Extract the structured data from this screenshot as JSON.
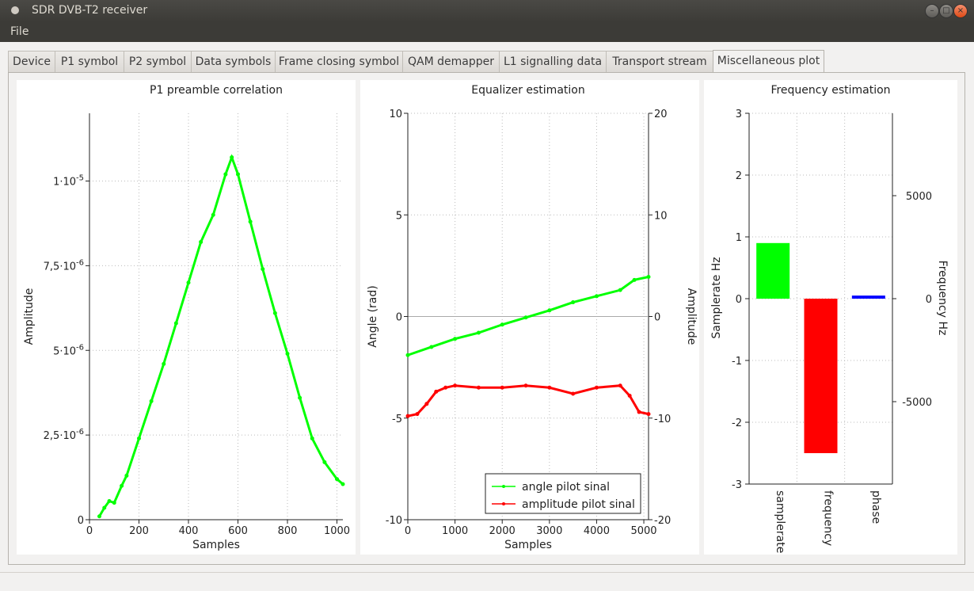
{
  "window": {
    "title": "SDR DVB-T2 receiver",
    "close_glyph": "×",
    "min_glyph": "–",
    "max_glyph": "□"
  },
  "menu": {
    "file": "File"
  },
  "tabs": [
    "Device",
    "P1 symbol",
    "P2 symbol",
    "Data symbols",
    "Frame closing symbol",
    "QAM demapper",
    "L1 signalling data",
    "Transport stream",
    "Miscellaneous plot"
  ],
  "active_tab": "Miscellaneous plot",
  "chart_data": [
    {
      "type": "line",
      "title": "P1 preamble correlation",
      "xlabel": "Samples",
      "ylabel": "Amplitude",
      "xlim": [
        0,
        1024
      ],
      "ylim": [
        0,
        1.2e-05
      ],
      "xticks": [
        "0",
        "200",
        "400",
        "600",
        "800",
        "1000"
      ],
      "yticks": [
        "0",
        "2,5·10-6",
        "5·10-6",
        "7,5·10-6",
        "1·10-5"
      ],
      "grid": true,
      "series": [
        {
          "color": "#00ff00",
          "x": [
            40,
            60,
            80,
            100,
            130,
            150,
            200,
            250,
            300,
            350,
            400,
            450,
            500,
            550,
            575,
            600,
            650,
            700,
            750,
            800,
            850,
            900,
            950,
            1000,
            1024
          ],
          "y": [
            1e-07,
            3.5e-07,
            5.5e-07,
            5e-07,
            1e-06,
            1.3e-06,
            2.4e-06,
            3.5e-06,
            4.6e-06,
            5.8e-06,
            7e-06,
            8.2e-06,
            9e-06,
            1.02e-05,
            1.07e-05,
            1.02e-05,
            8.8e-06,
            7.4e-06,
            6.1e-06,
            4.9e-06,
            3.6e-06,
            2.4e-06,
            1.7e-06,
            1.2e-06,
            1.05e-06
          ]
        }
      ]
    },
    {
      "type": "line",
      "title": "Equalizer estimation",
      "xlabel": "Samples",
      "ylabel": "Angle (rad)",
      "ylabel_right": "Amplitude",
      "xlim": [
        0,
        5100
      ],
      "ylim": [
        -10,
        10
      ],
      "ylim_right": [
        -20,
        20
      ],
      "xticks": [
        "0",
        "1000",
        "2000",
        "3000",
        "4000",
        "5000"
      ],
      "yticks": [
        "-10",
        "-5",
        "0",
        "5",
        "10"
      ],
      "yticks_right": [
        "-20",
        "-10",
        "0",
        "10",
        "20"
      ],
      "grid": true,
      "legend_position": "bottom-right",
      "series": [
        {
          "name": "angle pilot sinal",
          "color": "#00ff00",
          "x": [
            0,
            500,
            1000,
            1500,
            2000,
            2500,
            3000,
            3500,
            4000,
            4500,
            4800,
            5100
          ],
          "y": [
            -1.9,
            -1.5,
            -1.1,
            -0.8,
            -0.4,
            -0.05,
            0.3,
            0.7,
            1.0,
            1.3,
            1.8,
            1.95
          ]
        },
        {
          "name": "amplitude pilot sinal",
          "color": "#ff0000",
          "x": [
            0,
            200,
            400,
            600,
            800,
            1000,
            1500,
            2000,
            2500,
            3000,
            3500,
            4000,
            4500,
            4700,
            4900,
            5100
          ],
          "y": [
            -4.9,
            -4.8,
            -4.3,
            -3.7,
            -3.5,
            -3.4,
            -3.5,
            -3.5,
            -3.4,
            -3.5,
            -3.8,
            -3.5,
            -3.4,
            -3.9,
            -4.7,
            -4.8
          ]
        }
      ]
    },
    {
      "type": "bar",
      "title": "Frequency estimation",
      "ylabel": "Samplerate Hz",
      "ylabel_right": "Frequency Hz",
      "categories": [
        "samplerate",
        "frequency",
        "phase"
      ],
      "values": [
        0.9,
        -2.5,
        0.05
      ],
      "colors": [
        "#00ff00",
        "#ff0000",
        "#0000ff"
      ],
      "ylim": [
        -3,
        3
      ],
      "ylim_right": [
        -9000,
        9000
      ],
      "yticks": [
        "-3",
        "-2",
        "-1",
        "0",
        "1",
        "2",
        "3"
      ],
      "yticks_right": [
        "-5000",
        "0",
        "5000"
      ],
      "grid": true
    }
  ]
}
